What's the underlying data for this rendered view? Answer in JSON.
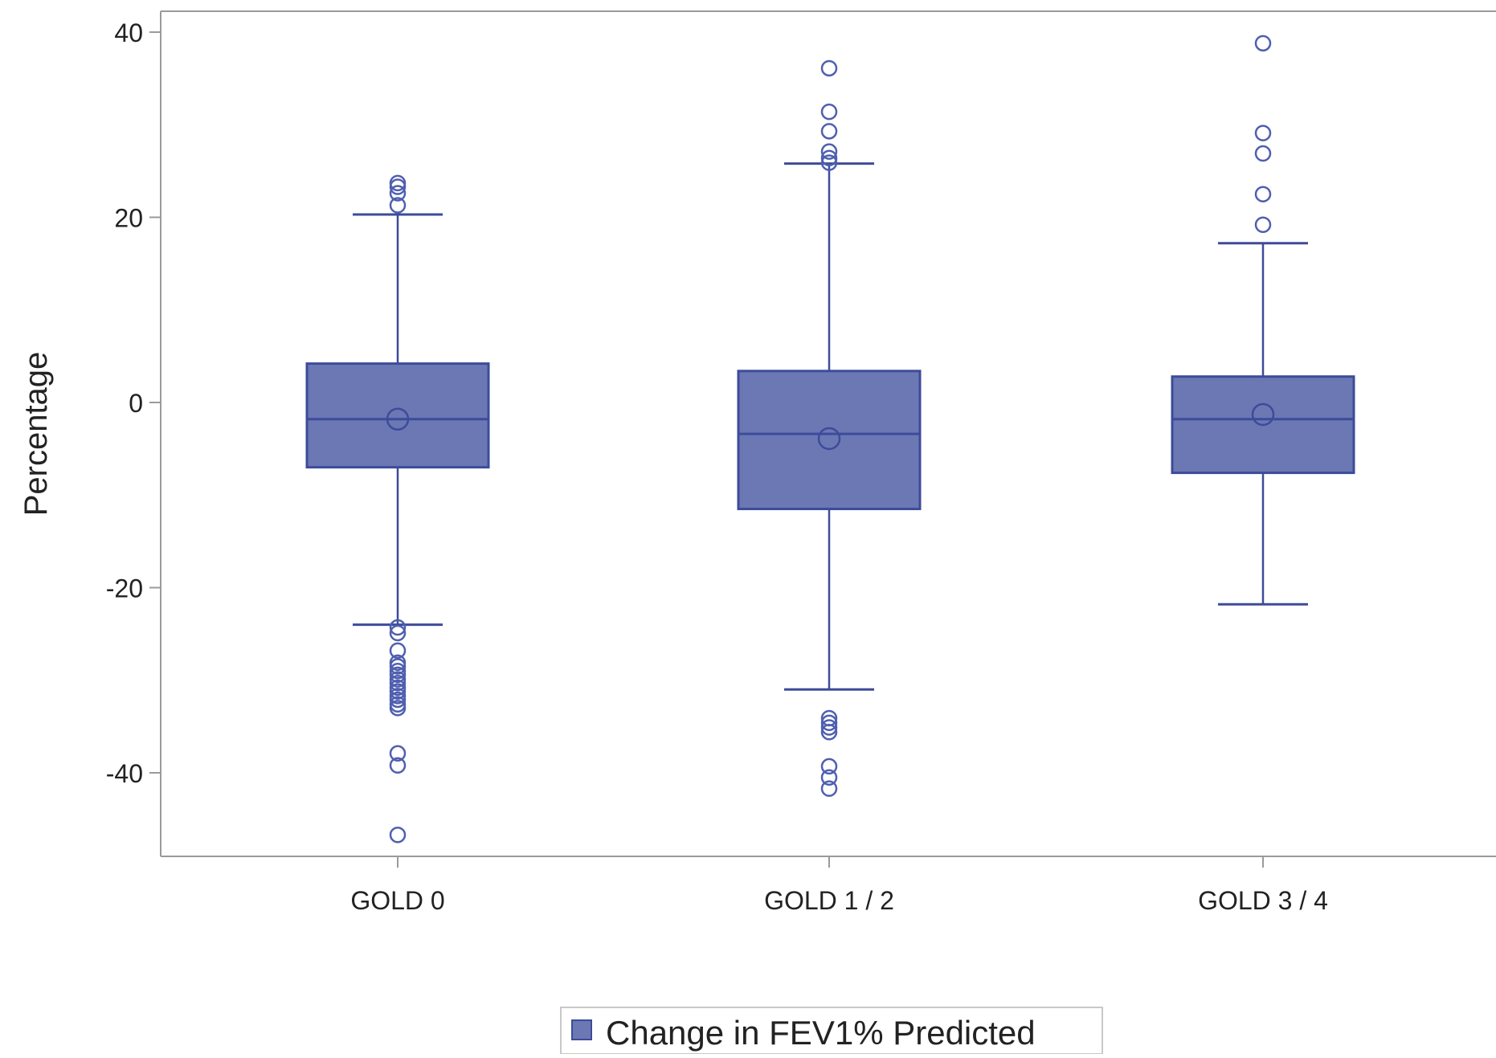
{
  "colors": {
    "box_fill": "#6b78b4",
    "line": "#3d4b9a",
    "outlier": "#4f5fb0",
    "frame": "#9a9a9a",
    "text": "#222222"
  },
  "chart_data": {
    "type": "box",
    "ylabel": "Percentage",
    "xlabel": "",
    "ylim": [
      -49,
      42
    ],
    "yticks": [
      40,
      20,
      0,
      -20,
      -40
    ],
    "ytick_labels": [
      "40",
      "20",
      "0",
      "-20",
      "-40"
    ],
    "legend": {
      "placement": "bottom-center",
      "entries": [
        "Change in FEV1% Predicted"
      ]
    },
    "categories": [
      "GOLD 0",
      "GOLD 1 / 2",
      "GOLD 3 / 4"
    ],
    "series": [
      {
        "name": "Change in FEV1% Predicted",
        "boxes": [
          {
            "category": "GOLD 0",
            "whisker_low": -24,
            "q1": -7,
            "median": -1.8,
            "mean": -1.8,
            "q3": 4.2,
            "whisker_high": 20.3,
            "outliers": [
              23.7,
              23.3,
              22.6,
              21.3,
              -24.3,
              -24.9,
              -26.8,
              -28.1,
              -28.5,
              -29.0,
              -29.4,
              -29.9,
              -30.3,
              -30.8,
              -31.2,
              -31.7,
              -32.1,
              -32.6,
              -33.0,
              -37.9,
              -39.2,
              -46.7
            ]
          },
          {
            "category": "GOLD 1 / 2",
            "whisker_low": -31,
            "q1": -11.5,
            "median": -3.4,
            "mean": -3.9,
            "q3": 3.4,
            "whisker_high": 25.8,
            "outliers": [
              36.1,
              31.4,
              29.3,
              27.1,
              26.4,
              25.9,
              -34.1,
              -34.6,
              -35.1,
              -35.6,
              -39.3,
              -40.5,
              -41.7
            ]
          },
          {
            "category": "GOLD 3 / 4",
            "whisker_low": -21.8,
            "q1": -7.6,
            "median": -1.8,
            "mean": -1.3,
            "q3": 2.8,
            "whisker_high": 17.2,
            "outliers": [
              38.8,
              29.1,
              26.9,
              22.5,
              19.2
            ]
          }
        ]
      }
    ]
  }
}
